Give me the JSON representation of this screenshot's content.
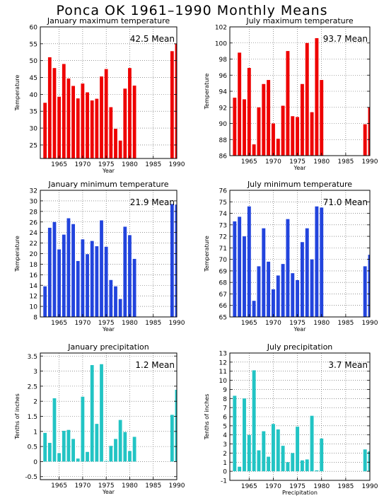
{
  "page": {
    "title": "Ponca OK   1961–1990 Monthly Means"
  },
  "colors": {
    "red": "#ee0000",
    "blue": "#2244dd",
    "cyan": "#22c4c4"
  },
  "chart_data": [
    {
      "type": "bar",
      "title": "January maximum temperature",
      "xlabel": "Year",
      "ylabel": "Temperature",
      "mean_label": "42.5 Mean",
      "color": "red",
      "ylim": [
        21,
        60
      ],
      "yticks": [
        25,
        30,
        35,
        40,
        45,
        50,
        55,
        60
      ],
      "xlim": [
        1961,
        1990
      ],
      "xticks": [
        1965,
        1970,
        1975,
        1980,
        1985,
        1990
      ],
      "x": [
        1962,
        1963,
        1964,
        1965,
        1966,
        1967,
        1968,
        1969,
        1970,
        1971,
        1972,
        1973,
        1974,
        1975,
        1976,
        1977,
        1978,
        1979,
        1980,
        1981,
        1982,
        1983,
        1984,
        1985,
        1986,
        1987,
        1988,
        1989,
        1990
      ],
      "values": [
        37.5,
        51,
        47.8,
        39.3,
        49,
        44.7,
        42.5,
        38.8,
        43.2,
        40.6,
        38.2,
        38.7,
        45.3,
        47.5,
        36.2,
        29.8,
        26.3,
        41.7,
        47.8,
        42.6,
        null,
        null,
        null,
        null,
        null,
        null,
        null,
        52.8,
        55
      ]
    },
    {
      "type": "bar",
      "title": "July maximum temperature",
      "xlabel": "Year",
      "ylabel": "Temperature",
      "mean_label": "93.7 Mean",
      "color": "red",
      "ylim": [
        86,
        102
      ],
      "yticks": [
        86,
        88,
        90,
        92,
        94,
        96,
        98,
        100,
        102
      ],
      "xlim": [
        1961,
        1990
      ],
      "xticks": [
        1965,
        1970,
        1975,
        1980,
        1985,
        1990
      ],
      "x": [
        1962,
        1963,
        1964,
        1965,
        1966,
        1967,
        1968,
        1969,
        1970,
        1971,
        1972,
        1973,
        1974,
        1975,
        1976,
        1977,
        1978,
        1979,
        1980,
        1981,
        1982,
        1983,
        1984,
        1985,
        1986,
        1987,
        1988,
        1989,
        1990
      ],
      "values": [
        93.2,
        98.8,
        93,
        96.9,
        87.4,
        92,
        94.9,
        95.4,
        90,
        88.1,
        92.2,
        99,
        90.9,
        90.8,
        94.9,
        100,
        91.4,
        100.6,
        95.4,
        null,
        null,
        null,
        null,
        null,
        null,
        null,
        null,
        89.9,
        92
      ]
    },
    {
      "type": "bar",
      "title": "January minimum temperature",
      "xlabel": "Year",
      "ylabel": "Temperature",
      "mean_label": "21.9 Mean",
      "color": "blue",
      "ylim": [
        8,
        32
      ],
      "yticks": [
        8,
        10,
        12,
        14,
        16,
        18,
        20,
        22,
        24,
        26,
        28,
        30,
        32
      ],
      "xlim": [
        1961,
        1990
      ],
      "xticks": [
        1965,
        1970,
        1975,
        1980,
        1985,
        1990
      ],
      "x": [
        1962,
        1963,
        1964,
        1965,
        1966,
        1967,
        1968,
        1969,
        1970,
        1971,
        1972,
        1973,
        1974,
        1975,
        1976,
        1977,
        1978,
        1979,
        1980,
        1981,
        1982,
        1983,
        1984,
        1985,
        1986,
        1987,
        1988,
        1989,
        1990
      ],
      "values": [
        13.8,
        24.9,
        26,
        20.8,
        23.6,
        26.7,
        25.6,
        18.6,
        22.7,
        19.9,
        22.4,
        21.4,
        26.3,
        21.3,
        15,
        13.8,
        11.4,
        25.1,
        23.5,
        19,
        null,
        null,
        null,
        null,
        null,
        null,
        null,
        29.4,
        29.3
      ]
    },
    {
      "type": "bar",
      "title": "July minimum temperature",
      "xlabel": "Year",
      "ylabel": "Temperature",
      "mean_label": "71.0 Mean",
      "color": "blue",
      "ylim": [
        65,
        76
      ],
      "yticks": [
        65,
        66,
        67,
        68,
        69,
        70,
        71,
        72,
        73,
        74,
        75,
        76
      ],
      "xlim": [
        1961,
        1990
      ],
      "xticks": [
        1965,
        1970,
        1975,
        1980,
        1985,
        1990
      ],
      "x": [
        1962,
        1963,
        1964,
        1965,
        1966,
        1967,
        1968,
        1969,
        1970,
        1971,
        1972,
        1973,
        1974,
        1975,
        1976,
        1977,
        1978,
        1979,
        1980,
        1981,
        1982,
        1983,
        1984,
        1985,
        1986,
        1987,
        1988,
        1989,
        1990
      ],
      "values": [
        73.3,
        73.7,
        72,
        74.6,
        66.4,
        69.4,
        72.7,
        69.8,
        67.4,
        68.6,
        69.6,
        73.5,
        68.8,
        68.2,
        71.5,
        72.7,
        70,
        74.6,
        74.5,
        null,
        null,
        null,
        null,
        null,
        null,
        null,
        null,
        69.4,
        70.4
      ]
    },
    {
      "type": "bar",
      "title": "January precipitation",
      "xlabel": "Year",
      "ylabel": "Tenths of inches",
      "mean_label": "1.2 Mean",
      "color": "cyan",
      "ylim": [
        -0.6,
        3.6
      ],
      "yticks": [
        -0.5,
        0,
        0.5,
        1,
        1.5,
        2,
        2.5,
        3,
        3.5
      ],
      "xlim": [
        1961,
        1990
      ],
      "xticks": [
        1965,
        1970,
        1975,
        1980,
        1985,
        1990
      ],
      "x": [
        1962,
        1963,
        1964,
        1965,
        1966,
        1967,
        1968,
        1969,
        1970,
        1971,
        1972,
        1973,
        1974,
        1975,
        1976,
        1977,
        1978,
        1979,
        1980,
        1981,
        1982,
        1983,
        1984,
        1985,
        1986,
        1987,
        1988,
        1989,
        1990
      ],
      "values": [
        0.95,
        0.62,
        2.1,
        0.28,
        1.02,
        1.05,
        0.75,
        0.1,
        2.15,
        0.32,
        3.2,
        1.25,
        3.23,
        0.02,
        0.52,
        0.75,
        1.38,
        0.98,
        0.35,
        0.82,
        null,
        null,
        null,
        null,
        null,
        null,
        null,
        1.55,
        2.38
      ]
    },
    {
      "type": "bar",
      "title": "July precipitation",
      "xlabel": "Precipitation",
      "ylabel": "Tenths of inches",
      "mean_label": "3.7 Mean",
      "color": "cyan",
      "ylim": [
        -1,
        13
      ],
      "yticks": [
        -1,
        0,
        1,
        2,
        3,
        4,
        5,
        6,
        7,
        8,
        9,
        10,
        11,
        12,
        13
      ],
      "xlim": [
        1961,
        1990
      ],
      "xticks": [
        1965,
        1970,
        1975,
        1980,
        1985,
        1990
      ],
      "x": [
        1962,
        1963,
        1964,
        1965,
        1966,
        1967,
        1968,
        1969,
        1970,
        1971,
        1972,
        1973,
        1974,
        1975,
        1976,
        1977,
        1978,
        1979,
        1980,
        1981,
        1982,
        1983,
        1984,
        1985,
        1986,
        1987,
        1988,
        1989,
        1990
      ],
      "values": [
        8.3,
        0.5,
        8,
        4,
        11.1,
        2.3,
        4.4,
        1.6,
        5.2,
        4.6,
        2.8,
        1,
        2,
        4.9,
        1.2,
        1.3,
        6.1,
        0.1,
        3.6,
        null,
        null,
        null,
        null,
        null,
        null,
        null,
        null,
        2.4,
        2.2
      ]
    }
  ]
}
